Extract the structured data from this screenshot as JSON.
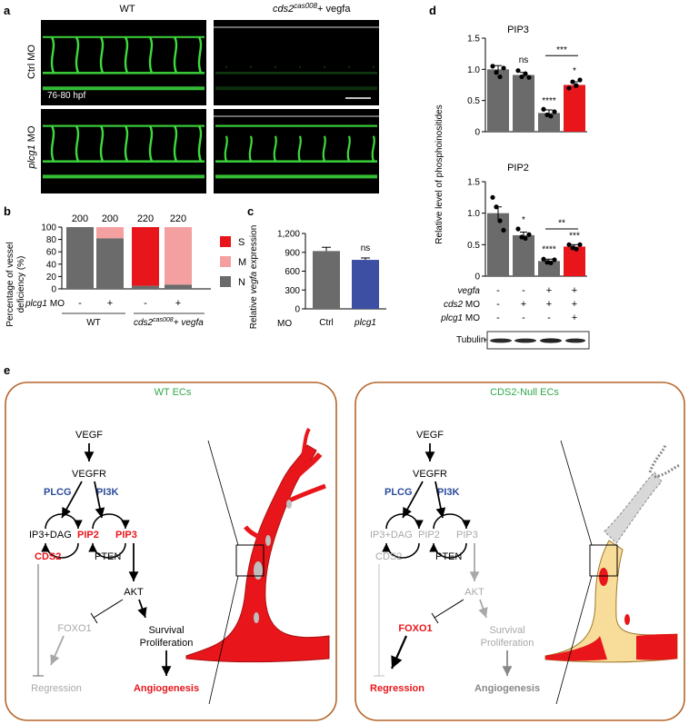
{
  "panel_a": {
    "label": "a",
    "col_headers": [
      "WT",
      "cds2",
      "cas008",
      "+ vegfa"
    ],
    "row_labels": [
      "Ctrl MO",
      "plcg1",
      "MO"
    ],
    "stage": "76-80 hpf"
  },
  "panel_b": {
    "label": "b",
    "ylabel": "Percentage of vessel deficiency (%)",
    "ylabel_line1": "Percentage of vessel",
    "ylabel_line2": "deficiency (%)",
    "yticks": [
      "0",
      "20",
      "40",
      "60",
      "80",
      "100"
    ],
    "n_labels": [
      "200",
      "200",
      "220",
      "220"
    ],
    "treatment_label": "plcg1",
    "treatment_suffix": "MO",
    "treatment_values": [
      "-",
      "+",
      "-",
      "+"
    ],
    "group_wt": "WT",
    "group_cds2": "cds2",
    "group_cds2_sup": "cas008",
    "group_cds2_suffix": "+ vegfa",
    "legend": [
      "S",
      "M",
      "N"
    ],
    "colors": {
      "S": "#e8161b",
      "M": "#f4a0a0",
      "N": "#6b6b6b"
    }
  },
  "panel_c": {
    "label": "c",
    "ylabel_prefix": "Relative",
    "ylabel_italic": "vegfa",
    "ylabel_suffix": "expression",
    "yticks": [
      "0",
      "300",
      "600",
      "900",
      "1,200"
    ],
    "xlabel": "MO",
    "categories": [
      "Ctrl",
      "plcg1"
    ],
    "sig": "ns",
    "colors": [
      "#6b6b6b",
      "#3c4fa3"
    ]
  },
  "panel_d": {
    "label": "d",
    "ylabel": "Relative level of phosphoinositides",
    "pip3_title": "PIP3",
    "pip2_title": "PIP2",
    "yticks": [
      "0",
      "0.5",
      "1.0",
      "1.5"
    ],
    "pip3_sig": [
      "ns",
      "****",
      "*",
      "***"
    ],
    "pip2_sig": [
      "*",
      "****",
      "***",
      "**"
    ],
    "row_labels": [
      "vegfa",
      "cds2",
      "MO",
      "plcg1",
      "MO"
    ],
    "row_values": [
      [
        "-",
        "-",
        "+",
        "+"
      ],
      [
        "-",
        "+",
        "+",
        "+"
      ],
      [
        "-",
        "-",
        "-",
        "+"
      ]
    ],
    "tubulin": "Tubulin"
  },
  "panel_e": {
    "label": "e",
    "wt_title": "WT ECs",
    "null_title": "CDS2-Null ECs",
    "nodes": {
      "vegf": "VEGF",
      "vegfr": "VEGFR",
      "plcg": "PLCG",
      "pi3k": "PI3K",
      "ip3dag": "IP3+DAG",
      "pip2": "PIP2",
      "pip3": "PIP3",
      "cds2": "CDS2",
      "pten": "PTEN",
      "akt": "AKT",
      "foxo1": "FOXO1",
      "survival": "Survival",
      "proliferation": "Proliferation",
      "regression": "Regression",
      "angiogenesis": "Angiogenesis"
    },
    "colors": {
      "active_red": "#e8161b",
      "blue": "#2a4a9a",
      "grey": "#a8a8a8",
      "title_green": "#2ea84a",
      "frame": "#b5652a"
    }
  },
  "chart_data": [
    {
      "type": "bar",
      "title": "",
      "stacked": true,
      "categories": [
        "WT -",
        "WT +",
        "cds2cas008 + vegfa -",
        "cds2cas008 + vegfa +"
      ],
      "series": [
        {
          "name": "N",
          "values": [
            100,
            82,
            5,
            7
          ]
        },
        {
          "name": "M",
          "values": [
            0,
            18,
            0,
            93
          ]
        },
        {
          "name": "S",
          "values": [
            0,
            0,
            95,
            0
          ]
        }
      ],
      "ylabel": "Percentage of vessel deficiency (%)",
      "ylim": [
        0,
        100
      ]
    },
    {
      "type": "bar",
      "categories": [
        "Ctrl",
        "plcg1"
      ],
      "values": [
        920,
        780
      ],
      "errors": [
        60,
        30
      ],
      "xlabel": "MO",
      "ylabel": "Relative vegfa expression",
      "ylim": [
        0,
        1200
      ]
    },
    {
      "type": "bar",
      "title": "PIP3",
      "categories": [
        "- / - / -",
        "- / + / -",
        "+ / + / -",
        "+ / + / +"
      ],
      "values": [
        1.0,
        0.91,
        0.3,
        0.75
      ],
      "errors": [
        0.06,
        0.04,
        0.05,
        0.05
      ],
      "points": [
        [
          1.05,
          0.95,
          0.88,
          1.02
        ],
        [
          0.98,
          0.88,
          0.93,
          0.87
        ],
        [
          0.36,
          0.27,
          0.25,
          0.32
        ],
        [
          0.7,
          0.8,
          0.74,
          0.83
        ]
      ],
      "ylabel": "Relative level of phosphoinositides",
      "ylim": [
        0,
        1.5
      ]
    },
    {
      "type": "bar",
      "title": "PIP2",
      "categories": [
        "- / - / -",
        "- / + / -",
        "+ / + / -",
        "+ / + / +"
      ],
      "values": [
        1.0,
        0.65,
        0.24,
        0.47
      ],
      "errors": [
        0.1,
        0.05,
        0.03,
        0.03
      ],
      "points": [
        [
          1.25,
          1.1,
          0.88,
          0.73
        ],
        [
          0.75,
          0.62,
          0.6,
          0.66
        ],
        [
          0.27,
          0.22,
          0.21,
          0.26
        ],
        [
          0.5,
          0.45,
          0.43,
          0.5
        ]
      ],
      "ylabel": "Relative level of phosphoinositides",
      "ylim": [
        0,
        1.5
      ]
    }
  ]
}
